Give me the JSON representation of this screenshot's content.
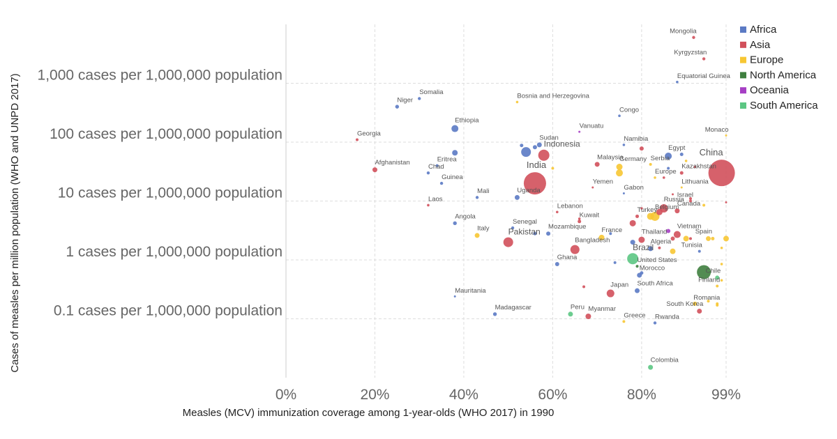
{
  "chart_data": {
    "type": "scatter",
    "xlabel": "Measles (MCV) immunization coverage among 1-year-olds (WHO 2017) in 1990",
    "ylabel": "Cases of measles per million population (WHO and UNPD 2017)",
    "x_ticks": [
      {
        "value": 0,
        "label": "0%"
      },
      {
        "value": 20,
        "label": "20%"
      },
      {
        "value": 40,
        "label": "40%"
      },
      {
        "value": 60,
        "label": "60%"
      },
      {
        "value": 80,
        "label": "80%"
      },
      {
        "value": 99,
        "label": "99%"
      }
    ],
    "y_ticks": [
      {
        "value": 1000,
        "label": "1,000 cases per 1,000,000 population"
      },
      {
        "value": 100,
        "label": "100 cases per 1,000,000 population"
      },
      {
        "value": 10,
        "label": "10 cases per 1,000,000 population"
      },
      {
        "value": 1,
        "label": "1 cases per 1,000,000 population"
      },
      {
        "value": 0.1,
        "label": "0.1 cases per 1,000,000 population"
      }
    ],
    "x_scale": "linear",
    "y_scale": "log",
    "xlim": [
      0,
      99
    ],
    "ylim": [
      0.01,
      10000
    ],
    "grid": true,
    "legend_position": "top-right",
    "legend": [
      {
        "name": "Africa",
        "color": "#5b7ac4"
      },
      {
        "name": "Asia",
        "color": "#d1505b"
      },
      {
        "name": "Europe",
        "color": "#f7c733"
      },
      {
        "name": "North America",
        "color": "#3f7f3f"
      },
      {
        "name": "Oceania",
        "color": "#a63fc4"
      },
      {
        "name": "South America",
        "color": "#5cc683"
      }
    ],
    "points": [
      {
        "label": "Mongolia",
        "x": 91.7,
        "y": 6000,
        "region": "Asia",
        "r": 2.2
      },
      {
        "label": "Kyrgyzstan",
        "x": 94,
        "y": 2600,
        "region": "Asia",
        "r": 2.2
      },
      {
        "label": "Equatorial Guinea",
        "x": 88,
        "y": 1050,
        "region": "Africa",
        "r": 1.8
      },
      {
        "label": "Somalia",
        "x": 30,
        "y": 550,
        "region": "Africa",
        "r": 2.2
      },
      {
        "label": "Niger",
        "x": 25,
        "y": 400,
        "region": "Africa",
        "r": 2.7
      },
      {
        "label": "Bosnia and Herzegovina",
        "x": 52,
        "y": 480,
        "region": "Europe",
        "r": 1.8
      },
      {
        "label": "Congo",
        "x": 75,
        "y": 280,
        "region": "Africa",
        "r": 1.8
      },
      {
        "label": "Ethiopia",
        "x": 38,
        "y": 170,
        "region": "Africa",
        "r": 5
      },
      {
        "label": "Vanuatu",
        "x": 66,
        "y": 150,
        "region": "Oceania",
        "r": 1.5
      },
      {
        "label": "Monaco",
        "x": 99,
        "y": 130,
        "region": "Europe",
        "r": 1.5
      },
      {
        "label": "Georgia",
        "x": 16,
        "y": 110,
        "region": "Asia",
        "r": 2
      },
      {
        "label": "Sudan",
        "x": 57,
        "y": 90,
        "region": "Africa",
        "r": 3.5
      },
      {
        "label": "Namibia",
        "x": 76,
        "y": 90,
        "region": "Africa",
        "r": 1.8
      },
      {
        "label": "Indonesia",
        "x": 58,
        "y": 60,
        "region": "Asia",
        "r": 8
      },
      {
        "label": "Egypt",
        "x": 86,
        "y": 58,
        "region": "Africa",
        "r": 5
      },
      {
        "label": "Malaysia",
        "x": 70,
        "y": 42,
        "region": "Asia",
        "r": 3.5
      },
      {
        "label": "Serbia",
        "x": 82,
        "y": 42,
        "region": "Europe",
        "r": 2
      },
      {
        "label": "China",
        "x": 98,
        "y": 30,
        "region": "Asia",
        "r": 19
      },
      {
        "label": "Germany",
        "x": 75,
        "y": 38,
        "region": "Europe",
        "r": 4.5
      },
      {
        "label": "Kazakhstan",
        "x": 89,
        "y": 30,
        "region": "Asia",
        "r": 2.5
      },
      {
        "label": "Afghanistan",
        "x": 20,
        "y": 34,
        "region": "Asia",
        "r": 3.5
      },
      {
        "label": "Eritrea",
        "x": 34,
        "y": 40,
        "region": "Africa",
        "r": 2
      },
      {
        "label": "Chad",
        "x": 32,
        "y": 30,
        "region": "Africa",
        "r": 2.2
      },
      {
        "label": "India",
        "x": 56,
        "y": 20,
        "region": "Asia",
        "r": 16
      },
      {
        "label": "Europe",
        "x": 83,
        "y": 25,
        "region": "Europe",
        "r": 1.8
      },
      {
        "label": "Guinea",
        "x": 35,
        "y": 20,
        "region": "Africa",
        "r": 2.2
      },
      {
        "label": "Yemen",
        "x": 69,
        "y": 17,
        "region": "Asia",
        "r": 1.5
      },
      {
        "label": "Lithuania",
        "x": 89,
        "y": 17,
        "region": "Europe",
        "r": 1.5
      },
      {
        "label": "Gabon",
        "x": 76,
        "y": 13.5,
        "region": "Africa",
        "r": 1.5
      },
      {
        "label": "Mali",
        "x": 43,
        "y": 11.5,
        "region": "Africa",
        "r": 2.2
      },
      {
        "label": "Uganda",
        "x": 52,
        "y": 11.5,
        "region": "Africa",
        "r": 3.5
      },
      {
        "label": "Israel",
        "x": 91,
        "y": 10,
        "region": "Asia",
        "r": 2
      },
      {
        "label": "Laos",
        "x": 32,
        "y": 8.5,
        "region": "Asia",
        "r": 1.8
      },
      {
        "label": "Russia",
        "x": 85,
        "y": 7.5,
        "region": "Asia",
        "r": 6
      },
      {
        "label": "Lebanon",
        "x": 61,
        "y": 6.5,
        "region": "Asia",
        "r": 1.8
      },
      {
        "label": "Canada",
        "x": 88,
        "y": 6.8,
        "region": "Asia",
        "r": 3.5
      },
      {
        "label": "Turkey",
        "x": 79,
        "y": 5.5,
        "region": "Asia",
        "r": 2.5
      },
      {
        "label": "Kuwait",
        "x": 66,
        "y": 4.5,
        "region": "Asia",
        "r": 2.5
      },
      {
        "label": "Belgium",
        "x": 83,
        "y": 5.5,
        "region": "Europe",
        "r": 6.5
      },
      {
        "label": "Angola",
        "x": 38,
        "y": 4.2,
        "region": "Africa",
        "r": 2.7
      },
      {
        "label": "Senegal",
        "x": 51,
        "y": 3.5,
        "region": "Africa",
        "r": 2.2
      },
      {
        "label": "Vietnam",
        "x": 88,
        "y": 2.7,
        "region": "Asia",
        "r": 5
      },
      {
        "label": "Mozambique",
        "x": 59,
        "y": 2.8,
        "region": "Africa",
        "r": 3
      },
      {
        "label": "Italy",
        "x": 43,
        "y": 2.6,
        "region": "Europe",
        "r": 3.5
      },
      {
        "label": "France",
        "x": 71,
        "y": 2.4,
        "region": "Europe",
        "r": 4
      },
      {
        "label": "Spain",
        "x": 95,
        "y": 2.3,
        "region": "Europe",
        "r": 3.5
      },
      {
        "label": "Pakistan",
        "x": 50,
        "y": 2.0,
        "region": "Asia",
        "r": 7
      },
      {
        "label": "Thailand",
        "x": 80,
        "y": 2.2,
        "region": "Asia",
        "r": 4.5
      },
      {
        "label": "Algeria",
        "x": 82,
        "y": 1.55,
        "region": "Africa",
        "r": 3.5
      },
      {
        "label": "Tunisia",
        "x": 93,
        "y": 1.4,
        "region": "Africa",
        "r": 2
      },
      {
        "label": "Bangladesh",
        "x": 65,
        "y": 1.5,
        "region": "Asia",
        "r": 6.5
      },
      {
        "label": "Brazil",
        "x": 78,
        "y": 1.05,
        "region": "South America",
        "r": 8
      },
      {
        "label": "Ghana",
        "x": 61,
        "y": 0.85,
        "region": "Africa",
        "r": 3
      },
      {
        "label": "United States",
        "x": 79,
        "y": 0.78,
        "region": "North America",
        "r": 2
      },
      {
        "label": "Morocco",
        "x": 79.5,
        "y": 0.55,
        "region": "Africa",
        "r": 3.5
      },
      {
        "label": "Chile",
        "x": 97,
        "y": 0.5,
        "region": "South America",
        "r": 3
      },
      {
        "label": "Finland",
        "x": 97,
        "y": 0.36,
        "region": "Europe",
        "r": 2
      },
      {
        "label": "South Africa",
        "x": 79,
        "y": 0.3,
        "region": "Africa",
        "r": 3.5
      },
      {
        "label": "Japan",
        "x": 73,
        "y": 0.27,
        "region": "Asia",
        "r": 5.5
      },
      {
        "label": "Mauritania",
        "x": 38,
        "y": 0.24,
        "region": "Africa",
        "r": 1.5
      },
      {
        "label": "Romania",
        "x": 97,
        "y": 0.18,
        "region": "Europe",
        "r": 2
      },
      {
        "label": "South Korea",
        "x": 93,
        "y": 0.135,
        "region": "Asia",
        "r": 3.5
      },
      {
        "label": "Madagascar",
        "x": 47,
        "y": 0.12,
        "region": "Africa",
        "r": 2.7
      },
      {
        "label": "Peru",
        "x": 64,
        "y": 0.12,
        "region": "South America",
        "r": 3.5
      },
      {
        "label": "Myanmar",
        "x": 68,
        "y": 0.11,
        "region": "Asia",
        "r": 4
      },
      {
        "label": "Greece",
        "x": 76,
        "y": 0.09,
        "region": "Europe",
        "r": 2
      },
      {
        "label": "Rwanda",
        "x": 83,
        "y": 0.085,
        "region": "Africa",
        "r": 2.2
      },
      {
        "label": "Colombia",
        "x": 82,
        "y": 0.015,
        "region": "South America",
        "r": 3.5
      },
      {
        "label": "",
        "x": 94,
        "y": 0.62,
        "region": "North America",
        "r": 10
      },
      {
        "label": "",
        "x": 54,
        "y": 68,
        "region": "Africa",
        "r": 7
      },
      {
        "label": "",
        "x": 53,
        "y": 88,
        "region": "Africa",
        "r": 2.5
      },
      {
        "label": "",
        "x": 56,
        "y": 82,
        "region": "Africa",
        "r": 3
      },
      {
        "label": "",
        "x": 38,
        "y": 66,
        "region": "Africa",
        "r": 4
      },
      {
        "label": "",
        "x": 89,
        "y": 62,
        "region": "Africa",
        "r": 2.5
      },
      {
        "label": "",
        "x": 80,
        "y": 78,
        "region": "Asia",
        "r": 3
      },
      {
        "label": "",
        "x": 92,
        "y": 38,
        "region": "Asia",
        "r": 1.8
      },
      {
        "label": "",
        "x": 86,
        "y": 36,
        "region": "Africa",
        "r": 2
      },
      {
        "label": "",
        "x": 90,
        "y": 48,
        "region": "Europe",
        "r": 1.8
      },
      {
        "label": "",
        "x": 60,
        "y": 36,
        "region": "Europe",
        "r": 2
      },
      {
        "label": "",
        "x": 75,
        "y": 30,
        "region": "Europe",
        "r": 5
      },
      {
        "label": "",
        "x": 85,
        "y": 25,
        "region": "Asia",
        "r": 1.8
      },
      {
        "label": "",
        "x": 87,
        "y": 13,
        "region": "Asia",
        "r": 1.5
      },
      {
        "label": "",
        "x": 91,
        "y": 11,
        "region": "Asia",
        "r": 2
      },
      {
        "label": "",
        "x": 99,
        "y": 9.5,
        "region": "Asia",
        "r": 1.5
      },
      {
        "label": "",
        "x": 94,
        "y": 8.5,
        "region": "Europe",
        "r": 2
      },
      {
        "label": "",
        "x": 80,
        "y": 7.5,
        "region": "Asia",
        "r": 1.8
      },
      {
        "label": "",
        "x": 84,
        "y": 6.5,
        "region": "Asia",
        "r": 4.5
      },
      {
        "label": "",
        "x": 82,
        "y": 5.5,
        "region": "Europe",
        "r": 5
      },
      {
        "label": "",
        "x": 66,
        "y": 5.0,
        "region": "Asia",
        "r": 1.8
      },
      {
        "label": "",
        "x": 86,
        "y": 3.1,
        "region": "Oceania",
        "r": 3
      },
      {
        "label": "",
        "x": 78,
        "y": 4.2,
        "region": "Asia",
        "r": 4.5
      },
      {
        "label": "",
        "x": 56,
        "y": 2.8,
        "region": "Africa",
        "r": 2.5
      },
      {
        "label": "",
        "x": 73,
        "y": 2.8,
        "region": "Africa",
        "r": 2
      },
      {
        "label": "",
        "x": 91,
        "y": 2.3,
        "region": "Asia",
        "r": 2
      },
      {
        "label": "",
        "x": 90,
        "y": 2.3,
        "region": "Europe",
        "r": 4
      },
      {
        "label": "",
        "x": 96,
        "y": 2.3,
        "region": "Europe",
        "r": 2.5
      },
      {
        "label": "",
        "x": 99,
        "y": 2.3,
        "region": "Europe",
        "r": 4
      },
      {
        "label": "",
        "x": 87,
        "y": 2.3,
        "region": "Asia",
        "r": 3
      },
      {
        "label": "",
        "x": 78,
        "y": 2.0,
        "region": "Africa",
        "r": 3.5
      },
      {
        "label": "",
        "x": 84,
        "y": 1.6,
        "region": "Asia",
        "r": 2
      },
      {
        "label": "",
        "x": 87,
        "y": 1.4,
        "region": "Europe",
        "r": 4
      },
      {
        "label": "",
        "x": 98,
        "y": 1.6,
        "region": "Europe",
        "r": 1.8
      },
      {
        "label": "",
        "x": 74,
        "y": 0.9,
        "region": "Africa",
        "r": 2
      },
      {
        "label": "",
        "x": 98,
        "y": 0.85,
        "region": "Europe",
        "r": 1.8
      },
      {
        "label": "",
        "x": 80,
        "y": 0.6,
        "region": "Africa",
        "r": 2.5
      },
      {
        "label": "",
        "x": 98,
        "y": 0.45,
        "region": "Europe",
        "r": 1.8
      },
      {
        "label": "",
        "x": 67,
        "y": 0.35,
        "region": "Asia",
        "r": 2
      },
      {
        "label": "",
        "x": 95,
        "y": 0.2,
        "region": "Europe",
        "r": 2
      },
      {
        "label": "",
        "x": 92,
        "y": 0.18,
        "region": "Europe",
        "r": 3
      },
      {
        "label": "",
        "x": 97,
        "y": 0.17,
        "region": "Europe",
        "r": 2
      }
    ]
  }
}
